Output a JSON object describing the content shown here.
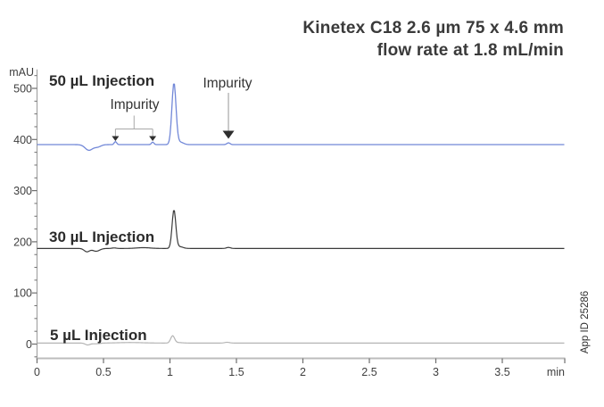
{
  "title": {
    "line1": "Kinetex C18 2.6 µm 75 x 4.6 mm",
    "line2": "flow rate at 1.8 mL/min"
  },
  "app_id": "App ID 25286",
  "chart_data": {
    "type": "line",
    "title": "Kinetex C18 2.6 µm 75 x 4.6 mm flow rate at 1.8 mL/min",
    "xlabel": "min",
    "ylabel": "mAU",
    "xlim": [
      0,
      3.97
    ],
    "ylim": [
      -30,
      537
    ],
    "grid": false,
    "x_ticks": [
      0,
      0.5,
      1,
      1.5,
      2,
      2.5,
      3,
      3.5
    ],
    "x_tick_labels": [
      "0",
      "0.5",
      "1",
      "1.5",
      "2",
      "2.5",
      "3",
      "3.5"
    ],
    "y_ticks": [
      0,
      100,
      200,
      300,
      400,
      500
    ],
    "y_tick_labels": [
      "0",
      "100",
      "200",
      "300",
      "400",
      "500"
    ],
    "y_minor_step": 25,
    "series": [
      {
        "label": "50 µL Injection",
        "color": "#7288d8",
        "stroke_width": 1.3,
        "baseline_mau": 390,
        "apex_mau": 510,
        "main_peak_min": 1.03,
        "impurity_peaks_min": [
          0.59,
          0.87,
          1.44
        ],
        "features": [
          {
            "t_min": 0.39,
            "h_mau": -11,
            "sigma_min": 0.028
          },
          {
            "t_min": 0.455,
            "h_mau": -4.5,
            "sigma_min": 0.025
          },
          {
            "t_min": 0.59,
            "h_mau": 6,
            "sigma_min": 0.009
          },
          {
            "t_min": 0.87,
            "h_mau": 5,
            "sigma_min": 0.009
          },
          {
            "t_min": 1.03,
            "h_mau": 120,
            "sigma_min": 0.0155
          },
          {
            "t_min": 1.075,
            "h_mau": 5,
            "sigma_min": 0.025
          },
          {
            "t_min": 1.44,
            "h_mau": 3.5,
            "sigma_min": 0.012
          }
        ]
      },
      {
        "label": "30 µL Injection",
        "color": "#3b3b3b",
        "stroke_width": 1.2,
        "baseline_mau": 187,
        "apex_mau": 262,
        "main_peak_min": 1.03,
        "impurity_peaks_min": [
          1.44
        ],
        "features": [
          {
            "t_min": 0.375,
            "h_mau": -6.5,
            "sigma_min": 0.02
          },
          {
            "t_min": 0.445,
            "h_mau": -5.5,
            "sigma_min": 0.026
          },
          {
            "t_min": 0.58,
            "h_mau": 1,
            "sigma_min": 0.015
          },
          {
            "t_min": 0.8,
            "h_mau": 1.5,
            "sigma_min": 0.05
          },
          {
            "t_min": 1.03,
            "h_mau": 75,
            "sigma_min": 0.014
          },
          {
            "t_min": 1.072,
            "h_mau": 3.5,
            "sigma_min": 0.025
          },
          {
            "t_min": 1.44,
            "h_mau": 2,
            "sigma_min": 0.015
          }
        ]
      },
      {
        "label": "5 µL Injection",
        "color": "#b4b4b4",
        "stroke_width": 1.2,
        "baseline_mau": 2,
        "apex_mau": 16,
        "main_peak_min": 1.02,
        "impurity_peaks_min": [
          1.43
        ],
        "features": [
          {
            "t_min": 0.38,
            "h_mau": -3.5,
            "sigma_min": 0.018
          },
          {
            "t_min": 0.44,
            "h_mau": -1.5,
            "sigma_min": 0.03
          },
          {
            "t_min": 0.7,
            "h_mau": 1,
            "sigma_min": 0.09
          },
          {
            "t_min": 1.02,
            "h_mau": 14,
            "sigma_min": 0.0145
          },
          {
            "t_min": 1.06,
            "h_mau": 1,
            "sigma_min": 0.03
          },
          {
            "t_min": 1.43,
            "h_mau": 1.5,
            "sigma_min": 0.018
          }
        ]
      }
    ],
    "annotations": [
      {
        "label": "Impurity",
        "type": "bracket-arrows",
        "series": "50 µL Injection",
        "targets_min": [
          0.59,
          0.87
        ]
      },
      {
        "label": "Impurity",
        "type": "arrow",
        "series": "50 µL Injection",
        "targets_min": [
          1.44
        ]
      }
    ],
    "colors": {
      "axis_line_x": "#bcbcbc",
      "axis_line_y": "#9a9a9a",
      "tick": "#6e6e6e",
      "tick_label": "#3f3f3f",
      "annotation_line": "#a8a8a8",
      "arrowhead": "#2e2e2e",
      "title_text": "#3a3a3a"
    }
  }
}
